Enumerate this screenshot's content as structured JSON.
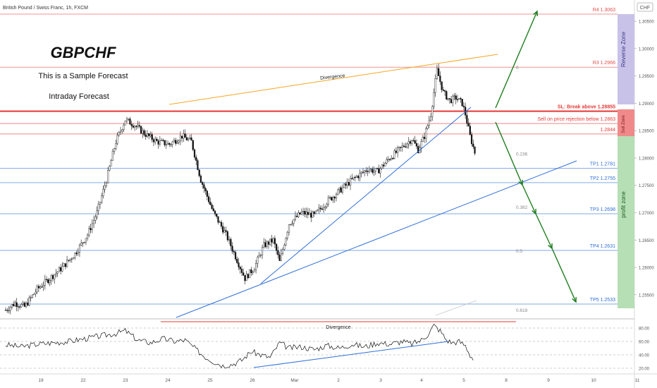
{
  "header": {
    "symbol_title": "British Pound / Swiss Franc, 1h, FXCM",
    "currency_badge": "CHF"
  },
  "annotations": {
    "pair": "GBPCHF",
    "line1": "This is a Sample Forecast",
    "line2": "Intraday Forecast",
    "divergence_price": "Divergence",
    "divergence_rsi": "Divergence",
    "zone_reverse": "Reverse Zone",
    "zone_sell": "Sell Zone",
    "zone_profit": "profit zone"
  },
  "levels": [
    {
      "key": "r4",
      "label": "R4 1.3063",
      "price": 1.3063,
      "color": "#e0504a"
    },
    {
      "key": "r3",
      "label": "R3 1.2966",
      "price": 1.2966,
      "color": "#e0504a"
    },
    {
      "key": "sl",
      "label": "SL: Break above 1.28855",
      "price": 1.28855,
      "color": "#e53935"
    },
    {
      "key": "sell",
      "label": "Sell on price rejection below 1.2863",
      "price": 1.2863,
      "color": "#e53935"
    },
    {
      "key": "l1",
      "label": "1.2844",
      "price": 1.2844,
      "color": "#e53935"
    },
    {
      "key": "tp1",
      "label": "TP1 1.2781",
      "price": 1.2781,
      "color": "#2f6fd6"
    },
    {
      "key": "tp2",
      "label": "TP2 1.2755",
      "price": 1.2755,
      "color": "#2f6fd6"
    },
    {
      "key": "tp3",
      "label": "TP3 1.2698",
      "price": 1.2698,
      "color": "#2f6fd6"
    },
    {
      "key": "tp4",
      "label": "TP4 1.2631",
      "price": 1.2631,
      "color": "#2f6fd6"
    },
    {
      "key": "tp5",
      "label": "TP5 1.2533",
      "price": 1.2533,
      "color": "#2f6fd6"
    }
  ],
  "fib_labels": [
    {
      "label": "0",
      "price": 1.2966
    },
    {
      "label": "0.236",
      "price": 1.2808
    },
    {
      "label": "0.382",
      "price": 1.2711
    },
    {
      "label": "0.5",
      "price": 1.2631
    },
    {
      "label": "0.618",
      "price": 1.2523
    }
  ],
  "price_axis": {
    "ticks": [
      "1.30500",
      "1.30000",
      "1.29500",
      "1.29000",
      "1.28500",
      "1.28000",
      "1.27500",
      "1.27000",
      "1.26500",
      "1.26000",
      "1.25500"
    ],
    "tick_values": [
      1.305,
      1.3,
      1.295,
      1.29,
      1.285,
      1.28,
      1.275,
      1.27,
      1.265,
      1.26,
      1.255
    ]
  },
  "rsi_axis": {
    "ticks": [
      "80.00",
      "60.00",
      "40.00",
      "20.00"
    ],
    "tick_values": [
      80,
      60,
      40,
      20
    ]
  },
  "time_axis": {
    "ticks": [
      "19",
      "22",
      "23",
      "24",
      "25",
      "26",
      "Mar",
      "2",
      "3",
      "4",
      "5",
      "8",
      "9",
      "10",
      "11"
    ]
  },
  "colors": {
    "bull": "#000000",
    "bear": "#000000",
    "divergence_line": "#f5a623",
    "trend_line": "#2f6fd6",
    "arrow": "#1e7d1e",
    "reverse_zone": "#c9c2e8",
    "sell_zone": "#f08a8a",
    "profit_zone": "#b6dfb6"
  },
  "chart_data": {
    "type": "candlestick",
    "title": "British Pound / Swiss Franc, 1h, FXCM",
    "price_range": [
      1.2525,
      1.308
    ],
    "rsi_range": [
      10,
      90
    ],
    "price_path": [
      [
        1.2522,
        0
      ],
      [
        1.2535,
        6
      ],
      [
        1.2528,
        12
      ],
      [
        1.256,
        20
      ],
      [
        1.258,
        28
      ],
      [
        1.26,
        36
      ],
      [
        1.2625,
        44
      ],
      [
        1.266,
        52
      ],
      [
        1.27,
        58
      ],
      [
        1.276,
        64
      ],
      [
        1.283,
        70
      ],
      [
        1.287,
        76
      ],
      [
        1.286,
        82
      ],
      [
        1.2845,
        88
      ],
      [
        1.283,
        96
      ],
      [
        1.2825,
        104
      ],
      [
        1.284,
        112
      ],
      [
        1.283,
        118
      ],
      [
        1.276,
        124
      ],
      [
        1.27,
        132
      ],
      [
        1.266,
        140
      ],
      [
        1.262,
        146
      ],
      [
        1.258,
        152
      ],
      [
        1.26,
        158
      ],
      [
        1.264,
        164
      ],
      [
        1.265,
        170
      ],
      [
        1.261,
        174
      ],
      [
        1.268,
        180
      ],
      [
        1.27,
        188
      ],
      [
        1.2695,
        196
      ],
      [
        1.272,
        204
      ],
      [
        1.274,
        212
      ],
      [
        1.276,
        220
      ],
      [
        1.278,
        230
      ],
      [
        1.2775,
        236
      ],
      [
        1.28,
        244
      ],
      [
        1.282,
        252
      ],
      [
        1.2835,
        258
      ],
      [
        1.2815,
        262
      ],
      [
        1.284,
        266
      ],
      [
        1.288,
        270
      ],
      [
        1.296,
        274
      ],
      [
        1.292,
        278
      ],
      [
        1.2905,
        282
      ],
      [
        1.291,
        286
      ],
      [
        1.29,
        290
      ],
      [
        1.288,
        292
      ],
      [
        1.284,
        295
      ],
      [
        1.281,
        298
      ]
    ],
    "rsi_path": [
      [
        55,
        0
      ],
      [
        52,
        10
      ],
      [
        56,
        20
      ],
      [
        58,
        30
      ],
      [
        60,
        40
      ],
      [
        64,
        50
      ],
      [
        68,
        60
      ],
      [
        72,
        70
      ],
      [
        76,
        76
      ],
      [
        62,
        84
      ],
      [
        58,
        92
      ],
      [
        64,
        100
      ],
      [
        60,
        108
      ],
      [
        62,
        114
      ],
      [
        50,
        120
      ],
      [
        38,
        126
      ],
      [
        30,
        132
      ],
      [
        24,
        138
      ],
      [
        26,
        144
      ],
      [
        32,
        150
      ],
      [
        45,
        156
      ],
      [
        40,
        162
      ],
      [
        36,
        168
      ],
      [
        58,
        174
      ],
      [
        50,
        180
      ],
      [
        52,
        188
      ],
      [
        48,
        196
      ],
      [
        54,
        204
      ],
      [
        50,
        212
      ],
      [
        56,
        220
      ],
      [
        52,
        228
      ],
      [
        58,
        236
      ],
      [
        56,
        244
      ],
      [
        60,
        252
      ],
      [
        56,
        258
      ],
      [
        62,
        264
      ],
      [
        70,
        268
      ],
      [
        84,
        272
      ],
      [
        76,
        276
      ],
      [
        62,
        280
      ],
      [
        58,
        284
      ],
      [
        60,
        288
      ],
      [
        54,
        292
      ],
      [
        40,
        295
      ],
      [
        30,
        298
      ]
    ]
  }
}
